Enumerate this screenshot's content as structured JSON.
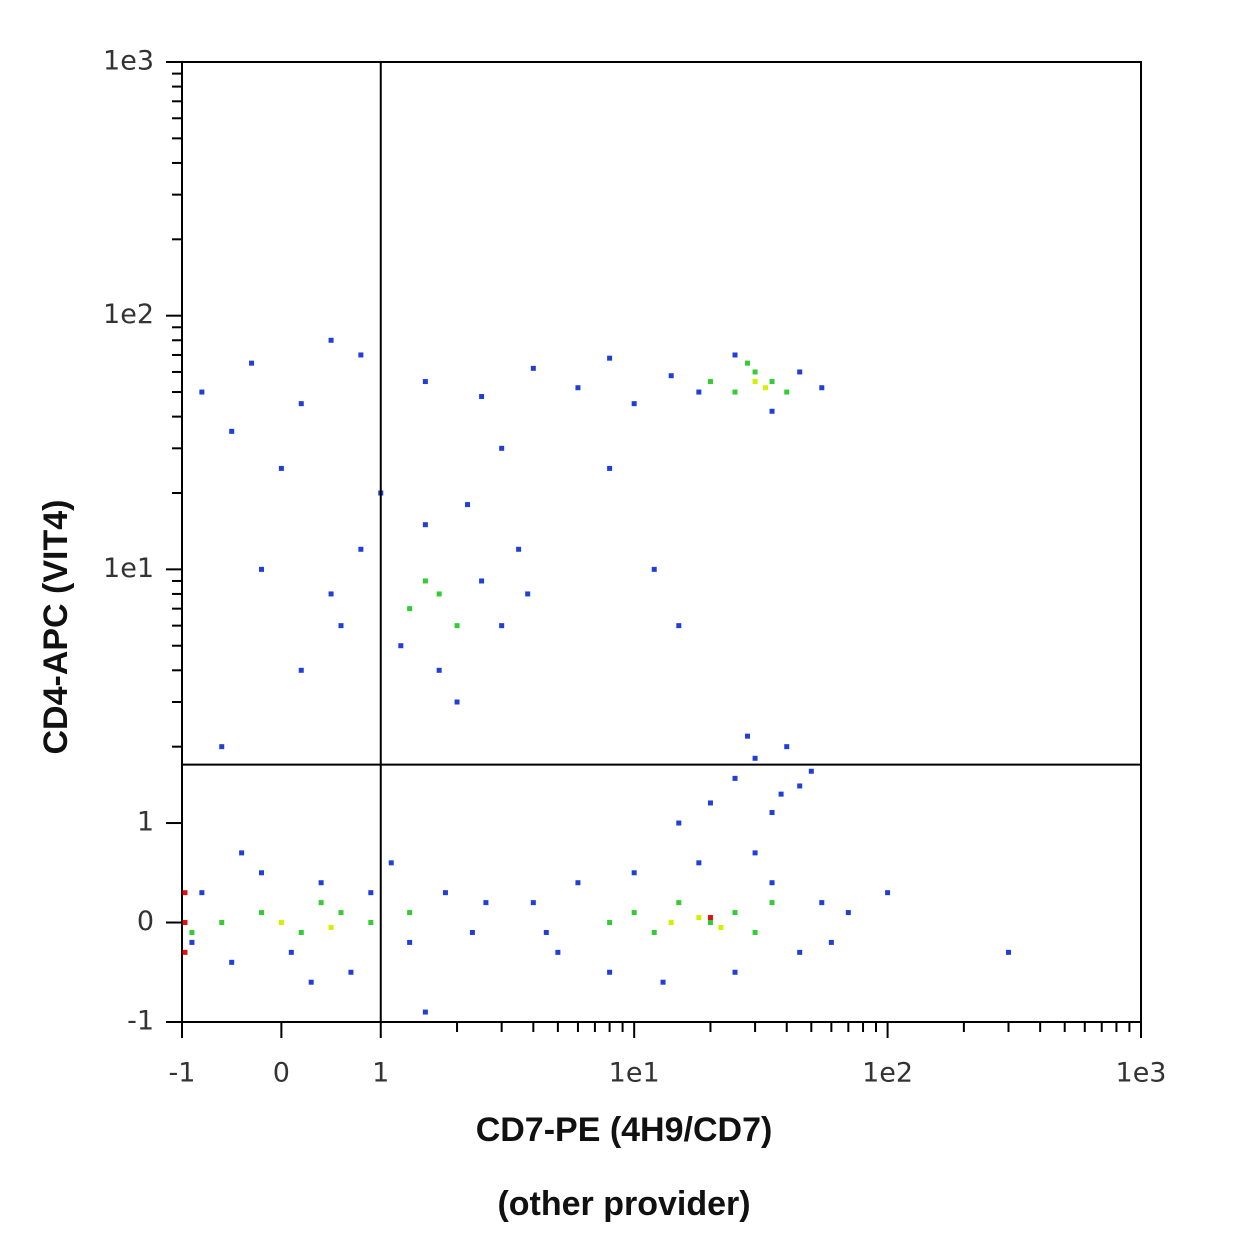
{
  "chart_data": {
    "type": "scatter",
    "xlabel": "CD7-PE (4H9/CD7)",
    "subtitle": "(other provider)",
    "ylabel": "CD4-APC (VIT4)",
    "xscale": "biexponential",
    "yscale": "biexponential",
    "xlim": [
      -1,
      1000
    ],
    "ylim": [
      -1,
      1000
    ],
    "xticks": [
      -1,
      0,
      1,
      {
        "value": 10,
        "label": "1e1"
      },
      {
        "value": 100,
        "label": "1e2"
      },
      {
        "value": 1000,
        "label": "1e3"
      }
    ],
    "yticks": [
      -1,
      0,
      1,
      {
        "value": 10,
        "label": "1e1"
      },
      {
        "value": 100,
        "label": "1e2"
      },
      {
        "value": 1000,
        "label": "1e3"
      }
    ],
    "quadrant": {
      "x": 1,
      "y": 1.7
    },
    "series": [
      {
        "color": "#1f3fd8",
        "x": [
          -0.8,
          -0.5,
          -0.2,
          0.1,
          0.4,
          0.7,
          0.9,
          1.3,
          1.8,
          2.3,
          -0.9,
          0.3,
          2.6,
          1.1,
          -0.4,
          4,
          5,
          6,
          8,
          10,
          13,
          18,
          25,
          35,
          45,
          55,
          70,
          4.5,
          30,
          60,
          20,
          25,
          30,
          35,
          40,
          45,
          15,
          50,
          28,
          38,
          0.2,
          0.5,
          0.8,
          1.2,
          1.5,
          2,
          2.5,
          3,
          3.5,
          1,
          0.6,
          2.2,
          3.8,
          -0.2,
          1.7,
          -0.8,
          -0.3,
          0.2,
          0.8,
          1.5,
          2.5,
          4,
          6,
          8,
          10,
          14,
          18,
          25,
          35,
          45,
          55,
          -0.5,
          0.5,
          0,
          3,
          8,
          12,
          15,
          -0.6,
          1.5,
          100,
          300
        ],
        "y": [
          0.3,
          -0.4,
          0.5,
          -0.3,
          0.4,
          -0.5,
          0.3,
          -0.2,
          0.3,
          -0.1,
          -0.2,
          -0.6,
          0.2,
          0.6,
          0.7,
          0.2,
          -0.3,
          0.4,
          -0.5,
          0.5,
          -0.6,
          0.6,
          -0.5,
          0.4,
          -0.3,
          0.2,
          0.1,
          -0.1,
          0.7,
          -0.2,
          1.2,
          1.5,
          1.8,
          1.1,
          2.0,
          1.4,
          1.0,
          1.6,
          2.2,
          1.3,
          4,
          8,
          12,
          5,
          15,
          3,
          9,
          6,
          12,
          20,
          6,
          18,
          8,
          10,
          4,
          50,
          65,
          45,
          70,
          55,
          48,
          62,
          52,
          68,
          45,
          58,
          50,
          70,
          42,
          60,
          52,
          35,
          80,
          25,
          30,
          25,
          10,
          6,
          2,
          -0.9,
          0.3,
          -0.3
        ]
      },
      {
        "color": "#33cc33",
        "x": [
          -0.6,
          -0.2,
          0.2,
          0.6,
          0.9,
          1.3,
          -0.9,
          0.4,
          8,
          10,
          12,
          15,
          20,
          25,
          30,
          35,
          1.3,
          1.7,
          2,
          1.5,
          20,
          25,
          30,
          35,
          40,
          28
        ],
        "y": [
          0,
          0.1,
          -0.1,
          0.1,
          0,
          0.1,
          -0.1,
          0.2,
          0,
          0.1,
          -0.1,
          0.2,
          0,
          0.1,
          -0.1,
          0.2,
          7,
          8,
          6,
          9,
          55,
          50,
          60,
          55,
          50,
          65
        ]
      },
      {
        "color": "#d4f000",
        "x": [
          0,
          0.5,
          14,
          18,
          22,
          30,
          33
        ],
        "y": [
          0,
          -0.05,
          0,
          0.05,
          -0.05,
          55,
          52
        ]
      },
      {
        "color": "#e01010",
        "x": [
          -0.97,
          -0.97,
          -0.97,
          20
        ],
        "y": [
          0,
          -0.3,
          0.3,
          0.05
        ]
      }
    ]
  }
}
